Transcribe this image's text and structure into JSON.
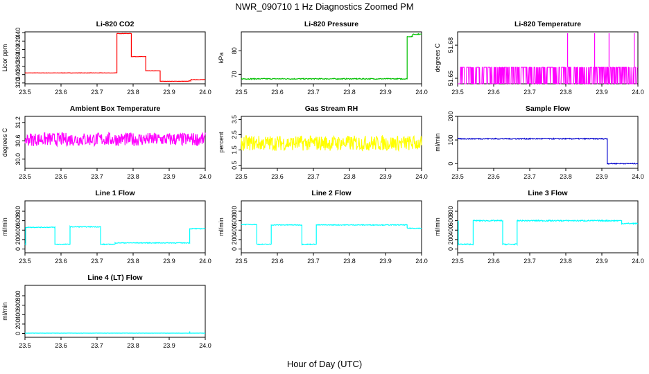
{
  "page": {
    "title": "NWR_090710  1 Hz Diagnostics Zoomed PM",
    "x_title": "Hour of Day (UTC)"
  },
  "colors": {
    "red": "#ff0000",
    "green": "#00c000",
    "magenta": "#ff00ff",
    "yellow": "#ffff00",
    "blue": "#0000cd",
    "cyan": "#00ffff"
  },
  "chart_data": [
    {
      "type": "line",
      "title": "Li-820 CO2",
      "xlabel": "",
      "ylabel": "Licor ppm",
      "color": "red",
      "noise": 0.4,
      "xlim": [
        23.5,
        24.0
      ],
      "ylim": [
        318,
        442
      ],
      "xticks": [
        "23.5",
        "23.6",
        "23.7",
        "23.8",
        "23.9",
        "24.0"
      ],
      "yticks": [
        "320",
        "340",
        "360",
        "380",
        "400",
        "420",
        "440"
      ],
      "segments": [
        [
          23.5,
          23.755,
          344
        ],
        [
          23.755,
          23.795,
          438
        ],
        [
          23.795,
          23.835,
          383
        ],
        [
          23.835,
          23.875,
          349
        ],
        [
          23.875,
          23.955,
          324
        ],
        [
          23.955,
          23.96,
          325
        ],
        [
          23.96,
          24.0,
          328
        ]
      ]
    },
    {
      "type": "line",
      "title": "Li-820 Pressure",
      "xlabel": "",
      "ylabel": "kPa",
      "color": "green",
      "noise": 0.2,
      "xlim": [
        23.5,
        24.0
      ],
      "ylim": [
        66,
        88
      ],
      "xticks": [
        "23.5",
        "23.6",
        "23.7",
        "23.8",
        "23.9",
        "24.0"
      ],
      "yticks": [
        "70",
        "80"
      ],
      "segments": [
        [
          23.5,
          23.945,
          68.1
        ],
        [
          23.945,
          23.96,
          68.1
        ],
        [
          23.96,
          23.975,
          86
        ],
        [
          23.975,
          24.0,
          87
        ]
      ]
    },
    {
      "type": "line",
      "title": "Li-820 Temperature",
      "xlabel": "",
      "ylabel": "degrees C",
      "color": "magenta",
      "noise": 0,
      "flicker": {
        "base": 51.645,
        "high": 51.66
      },
      "xlim": [
        23.5,
        24.0
      ],
      "ylim": [
        51.645,
        51.692
      ],
      "xticks": [
        "23.5",
        "23.6",
        "23.7",
        "23.8",
        "23.9",
        "24.0"
      ],
      "yticks": [
        "51.65",
        "51.68"
      ],
      "spikes": [
        23.805,
        23.88,
        23.92,
        23.99
      ]
    },
    {
      "type": "line",
      "title": "Ambient Box Temperature",
      "xlabel": "",
      "ylabel": "degrees C",
      "color": "magenta",
      "noise": 0.22,
      "xlim": [
        23.5,
        24.0
      ],
      "ylim": [
        29.7,
        31.4
      ],
      "xticks": [
        "23.5",
        "23.6",
        "23.7",
        "23.8",
        "23.9",
        "24.0"
      ],
      "yticks": [
        "30.0",
        "30.6",
        "31.2"
      ],
      "segments": [
        [
          23.5,
          24.0,
          30.65
        ]
      ]
    },
    {
      "type": "line",
      "title": "Gas Stream RH",
      "xlabel": "",
      "ylabel": "percent",
      "color": "yellow",
      "noise": 0.5,
      "xlim": [
        23.5,
        24.0
      ],
      "ylim": [
        0.3,
        3.7
      ],
      "xticks": [
        "23.5",
        "23.6",
        "23.7",
        "23.8",
        "23.9",
        "24.0"
      ],
      "yticks": [
        "0.5",
        "1.5",
        "2.5",
        "3.5"
      ],
      "segments": [
        [
          23.5,
          24.0,
          1.95
        ]
      ]
    },
    {
      "type": "line",
      "title": "Sample Flow",
      "xlabel": "",
      "ylabel": "ml/min",
      "color": "blue",
      "noise": 2,
      "xlim": [
        23.5,
        24.0
      ],
      "ylim": [
        -20,
        200
      ],
      "xticks": [
        "23.5",
        "23.6",
        "23.7",
        "23.8",
        "23.9",
        "24.0"
      ],
      "yticks": [
        "0",
        "100",
        "200"
      ],
      "segments": [
        [
          23.5,
          23.915,
          105
        ],
        [
          23.915,
          24.0,
          0
        ]
      ]
    },
    {
      "type": "line",
      "title": "Line 1 Flow",
      "xlabel": "",
      "ylabel": "ml/min",
      "color": "cyan",
      "noise": 8,
      "xlim": [
        23.5,
        24.0
      ],
      "ylim": [
        -80,
        1020
      ],
      "xticks": [
        "23.5",
        "23.6",
        "23.7",
        "23.8",
        "23.9",
        "24.0"
      ],
      "yticks": [
        "0",
        "200",
        "400",
        "600",
        "800"
      ],
      "segments": [
        [
          23.5,
          23.502,
          100
        ],
        [
          23.502,
          23.583,
          460
        ],
        [
          23.583,
          23.625,
          100
        ],
        [
          23.625,
          23.71,
          470
        ],
        [
          23.71,
          23.75,
          100
        ],
        [
          23.75,
          23.957,
          130
        ],
        [
          23.957,
          24.0,
          430
        ]
      ]
    },
    {
      "type": "line",
      "title": "Line 2 Flow",
      "xlabel": "",
      "ylabel": "ml/min",
      "color": "cyan",
      "noise": 8,
      "xlim": [
        23.5,
        24.0
      ],
      "ylim": [
        -80,
        1020
      ],
      "xticks": [
        "23.5",
        "23.6",
        "23.7",
        "23.8",
        "23.9",
        "24.0"
      ],
      "yticks": [
        "0",
        "200",
        "400",
        "600",
        "800"
      ],
      "segments": [
        [
          23.5,
          23.543,
          520
        ],
        [
          23.543,
          23.583,
          100
        ],
        [
          23.583,
          23.668,
          510
        ],
        [
          23.668,
          23.708,
          100
        ],
        [
          23.708,
          23.96,
          510
        ],
        [
          23.96,
          24.0,
          440
        ]
      ]
    },
    {
      "type": "line",
      "title": "Line 3 Flow",
      "xlabel": "",
      "ylabel": "ml/min",
      "color": "cyan",
      "noise": 12,
      "xlim": [
        23.5,
        24.0
      ],
      "ylim": [
        -80,
        1020
      ],
      "xticks": [
        "23.5",
        "23.6",
        "23.7",
        "23.8",
        "23.9",
        "24.0"
      ],
      "yticks": [
        "0",
        "200",
        "400",
        "600",
        "800"
      ],
      "segments": [
        [
          23.5,
          23.502,
          580
        ],
        [
          23.502,
          23.543,
          100
        ],
        [
          23.543,
          23.625,
          600
        ],
        [
          23.625,
          23.665,
          100
        ],
        [
          23.665,
          23.955,
          600
        ],
        [
          23.955,
          24.0,
          540
        ]
      ]
    },
    {
      "type": "line",
      "title": "Line 4 (LT) Flow",
      "xlabel": "",
      "ylabel": "ml/min",
      "color": "cyan",
      "noise": 2,
      "xlim": [
        23.5,
        24.0
      ],
      "ylim": [
        -80,
        1020
      ],
      "xticks": [
        "23.5",
        "23.6",
        "23.7",
        "23.8",
        "23.9",
        "24.0"
      ],
      "yticks": [
        "0",
        "200",
        "400",
        "600",
        "800"
      ],
      "segments": [
        [
          23.5,
          24.0,
          8
        ]
      ],
      "spike": [
        23.957,
        45
      ]
    }
  ]
}
